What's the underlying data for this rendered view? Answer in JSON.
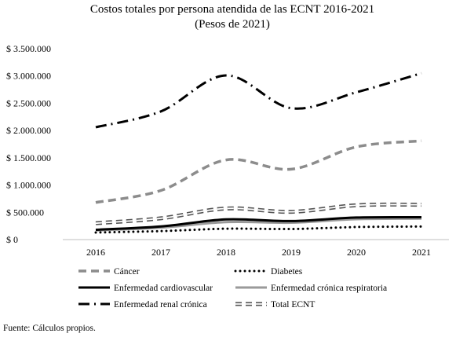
{
  "chart_data": {
    "type": "line",
    "title": "Costos totales por persona atendida de las ECNT 2016-2021",
    "subtitle": "(Pesos de 2021)",
    "xlabel": "",
    "ylabel": "",
    "categories": [
      "2016",
      "2017",
      "2018",
      "2019",
      "2020",
      "2021"
    ],
    "ylim": [
      0,
      3500000
    ],
    "yticks": [
      {
        "value": 0,
        "label": "$ 0"
      },
      {
        "value": 500000,
        "label": "$ 500.000"
      },
      {
        "value": 1000000,
        "label": "$ 1.000.000"
      },
      {
        "value": 1500000,
        "label": "$ 1.500.000"
      },
      {
        "value": 2000000,
        "label": "$ 2.000.000"
      },
      {
        "value": 2500000,
        "label": "$ 2.500.000"
      },
      {
        "value": 3000000,
        "label": "$ 3.000.000"
      },
      {
        "value": 3500000,
        "label": "$ 3.500.000"
      }
    ],
    "grid": false,
    "legend_position": "bottom",
    "series": [
      {
        "name": "Cáncer",
        "values": [
          680000,
          900000,
          1460000,
          1290000,
          1700000,
          1810000
        ],
        "color": "#8c8c8c",
        "style": "dash"
      },
      {
        "name": "Diabetes",
        "values": [
          130000,
          155000,
          200000,
          195000,
          230000,
          240000
        ],
        "color": "#000000",
        "style": "dot"
      },
      {
        "name": "Enfermedad cardiovascular",
        "values": [
          180000,
          240000,
          370000,
          340000,
          405000,
          410000
        ],
        "color": "#000000",
        "style": "solid"
      },
      {
        "name": "Enfermedad crónica respiratoria",
        "values": [
          170000,
          220000,
          320000,
          310000,
          375000,
          385000
        ],
        "color": "#9a9a9a",
        "style": "solid"
      },
      {
        "name": "Enfermedad renal crónica",
        "values": [
          2060000,
          2350000,
          3010000,
          2410000,
          2700000,
          3050000
        ],
        "color": "#000000",
        "style": "dashdot"
      },
      {
        "name": "Total ECNT",
        "values": [
          300000,
          390000,
          570000,
          510000,
          630000,
          640000
        ],
        "color": "#555555",
        "style": "double-dash"
      }
    ]
  },
  "footer": {
    "source": "Fuente: Cálculos propios."
  }
}
